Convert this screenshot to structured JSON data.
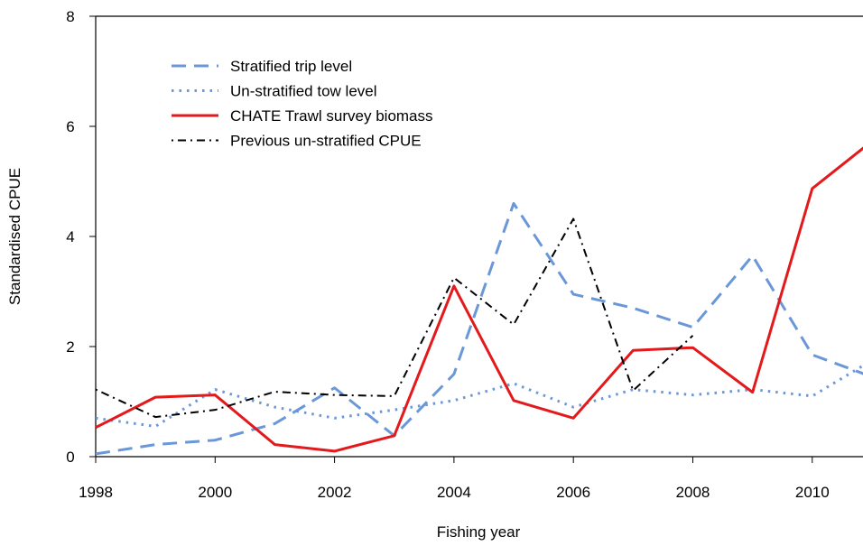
{
  "chart_data": {
    "type": "line",
    "x_label": "Fishing year",
    "y_label": "Standardised CPUE",
    "x": [
      1998,
      1999,
      2000,
      2001,
      2002,
      2003,
      2004,
      2005,
      2006,
      2007,
      2008,
      2009,
      2010,
      2011
    ],
    "xlim": [
      1998,
      2010.85
    ],
    "xticks": [
      1998,
      2000,
      2002,
      2004,
      2006,
      2008,
      2010
    ],
    "ylim": [
      0,
      8
    ],
    "yticks": [
      0,
      2,
      4,
      6,
      8
    ],
    "legend": "top-left",
    "series": [
      {
        "name": "Stratified trip level",
        "color": "#6a97d8",
        "style": "dashed",
        "values": [
          0.05,
          0.22,
          0.3,
          0.6,
          1.25,
          0.38,
          1.5,
          4.6,
          2.95,
          2.7,
          2.35,
          3.65,
          1.85,
          1.45
        ]
      },
      {
        "name": "Un-stratified tow level",
        "color": "#6a97d8",
        "style": "dotted",
        "values": [
          0.7,
          0.55,
          1.22,
          0.9,
          0.7,
          0.85,
          1.02,
          1.33,
          0.9,
          1.22,
          1.12,
          1.22,
          1.1,
          1.75
        ]
      },
      {
        "name": "CHATE Trawl survey biomass",
        "color": "#e3191c",
        "style": "solid",
        "values": [
          0.53,
          1.08,
          1.12,
          0.22,
          0.1,
          0.38,
          3.1,
          1.02,
          0.7,
          1.93,
          1.98,
          1.17,
          4.87,
          5.73
        ]
      },
      {
        "name": "Previous un-stratified CPUE",
        "color": "#000000",
        "style": "dotdash",
        "values": [
          1.22,
          0.72,
          0.85,
          1.18,
          1.12,
          1.1,
          3.25,
          2.4,
          4.32,
          1.2,
          2.2,
          null,
          null,
          null
        ]
      }
    ]
  }
}
